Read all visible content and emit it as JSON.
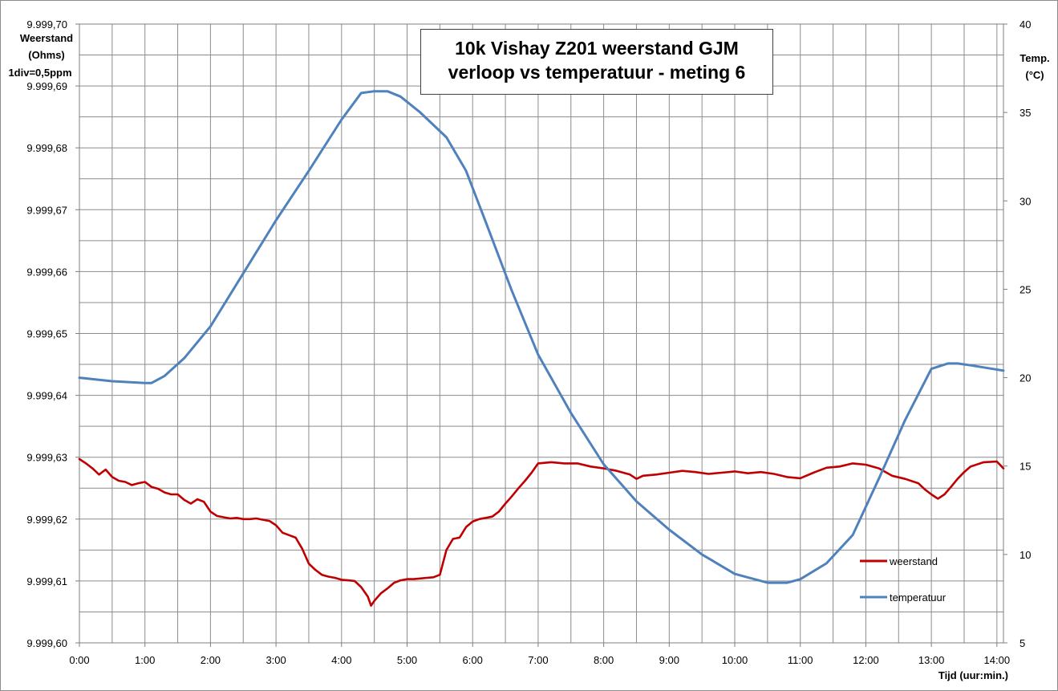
{
  "chart_data": {
    "type": "line",
    "title": [
      "10k Vishay  Z201 weerstand GJM",
      "verloop vs temperatuur  - meting 6"
    ],
    "y_left_label": [
      "Weerstand",
      "(Ohms)",
      "1div=0,5ppm"
    ],
    "y_right_label": [
      "Temp.",
      "(°C)"
    ],
    "xlabel": "Tijd (uur:min.)",
    "x_ticks": [
      "0:00",
      "1:00",
      "2:00",
      "3:00",
      "4:00",
      "5:00",
      "6:00",
      "7:00",
      "8:00",
      "9:00",
      "10:00",
      "11:00",
      "12:00",
      "13:00",
      "14:00"
    ],
    "xlim": [
      0,
      14.1
    ],
    "y_left_ticks": [
      9999.6,
      9999.61,
      9999.62,
      9999.63,
      9999.64,
      9999.65,
      9999.66,
      9999.67,
      9999.68,
      9999.69,
      9999.7
    ],
    "y_left_tick_labels": [
      "9.999,60",
      "9.999,61",
      "9.999,62",
      "9.999,63",
      "9.999,64",
      "9.999,65",
      "9.999,66",
      "9.999,67",
      "9.999,68",
      "9.999,69",
      "9.999,70"
    ],
    "ylim_left": [
      9999.6,
      9999.7
    ],
    "y_right_ticks": [
      5,
      10,
      15,
      20,
      25,
      30,
      35,
      40
    ],
    "ylim_right": [
      5,
      40
    ],
    "grid": true,
    "legend_position": "bottom-right",
    "colors": {
      "weerstand": "#c00000",
      "temperatuur": "#4f81bd"
    },
    "series": [
      {
        "name": "weerstand",
        "axis": "left",
        "x": [
          0,
          0.1,
          0.2,
          0.3,
          0.4,
          0.5,
          0.6,
          0.7,
          0.8,
          0.9,
          1.0,
          1.1,
          1.2,
          1.3,
          1.4,
          1.5,
          1.6,
          1.7,
          1.8,
          1.9,
          2.0,
          2.1,
          2.2,
          2.3,
          2.4,
          2.5,
          2.6,
          2.7,
          2.8,
          2.9,
          3.0,
          3.1,
          3.2,
          3.3,
          3.4,
          3.5,
          3.6,
          3.7,
          3.8,
          3.9,
          4.0,
          4.1,
          4.2,
          4.3,
          4.4,
          4.45,
          4.5,
          4.6,
          4.7,
          4.8,
          4.9,
          5.0,
          5.1,
          5.2,
          5.3,
          5.4,
          5.5,
          5.6,
          5.7,
          5.8,
          5.9,
          6.0,
          6.1,
          6.2,
          6.3,
          6.4,
          6.5,
          6.6,
          6.7,
          6.8,
          6.9,
          7.0,
          7.2,
          7.4,
          7.6,
          7.8,
          8.0,
          8.2,
          8.4,
          8.5,
          8.6,
          8.8,
          9.0,
          9.2,
          9.4,
          9.6,
          9.8,
          10.0,
          10.2,
          10.4,
          10.6,
          10.8,
          11.0,
          11.2,
          11.4,
          11.6,
          11.8,
          12.0,
          12.2,
          12.4,
          12.6,
          12.8,
          12.9,
          13.0,
          13.1,
          13.2,
          13.3,
          13.4,
          13.5,
          13.6,
          13.8,
          14.0,
          14.1
        ],
        "values": [
          9999.6297,
          9999.629,
          9999.6282,
          9999.6272,
          9999.628,
          9999.6268,
          9999.6262,
          9999.626,
          9999.6255,
          9999.6258,
          9999.626,
          9999.6252,
          9999.6249,
          9999.6243,
          9999.624,
          9999.624,
          9999.6231,
          9999.6225,
          9999.6232,
          9999.6228,
          9999.6212,
          9999.6205,
          9999.6203,
          9999.6201,
          9999.6202,
          9999.62,
          9999.62,
          9999.6201,
          9999.6199,
          9999.6197,
          9999.619,
          9999.6178,
          9999.6174,
          9999.617,
          9999.6152,
          9999.6128,
          9999.6118,
          9999.611,
          9999.6107,
          9999.6105,
          9999.6102,
          9999.6101,
          9999.61,
          9999.609,
          9999.6075,
          9999.606,
          9999.6068,
          9999.608,
          9999.6088,
          9999.6097,
          9999.6101,
          9999.6103,
          9999.6103,
          9999.6104,
          9999.6105,
          9999.6106,
          9999.611,
          9999.615,
          9999.6168,
          9999.617,
          9999.6187,
          9999.6196,
          9999.62,
          9999.6202,
          9999.6204,
          9999.6212,
          9999.6225,
          9999.6237,
          9999.625,
          9999.6262,
          9999.6275,
          9999.629,
          9999.6292,
          9999.629,
          9999.629,
          9999.6285,
          9999.6282,
          9999.6278,
          9999.6272,
          9999.6265,
          9999.627,
          9999.6272,
          9999.6275,
          9999.6278,
          9999.6276,
          9999.6273,
          9999.6275,
          9999.6277,
          9999.6274,
          9999.6276,
          9999.6273,
          9999.6268,
          9999.6266,
          9999.6275,
          9999.6283,
          9999.6285,
          9999.629,
          9999.6288,
          9999.6282,
          9999.627,
          9999.6265,
          9999.6258,
          9999.6248,
          9999.624,
          9999.6233,
          9999.624,
          9999.6252,
          9999.6265,
          9999.6276,
          9999.6285,
          9999.6292,
          9999.6293,
          9999.6282
        ],
        "line_width": 2.6
      },
      {
        "name": "temperatuur",
        "axis": "right",
        "x": [
          0,
          0.5,
          1.0,
          1.1,
          1.3,
          1.6,
          2.0,
          2.5,
          3.0,
          3.5,
          4.0,
          4.3,
          4.5,
          4.7,
          4.9,
          5.2,
          5.6,
          5.9,
          6.2,
          6.6,
          7.0,
          7.5,
          8.0,
          8.5,
          9.0,
          9.5,
          10.0,
          10.5,
          10.8,
          11.0,
          11.4,
          11.8,
          12.2,
          12.6,
          13.0,
          13.25,
          13.4,
          13.6,
          14.1
        ],
        "values": [
          20.0,
          19.8,
          19.7,
          19.7,
          20.1,
          21.1,
          22.9,
          25.9,
          28.9,
          31.7,
          34.6,
          36.1,
          36.2,
          36.2,
          35.9,
          35.0,
          33.6,
          31.7,
          28.8,
          24.9,
          21.3,
          18.0,
          15.1,
          13.0,
          11.4,
          10.0,
          8.9,
          8.4,
          8.4,
          8.6,
          9.5,
          11.1,
          14.3,
          17.6,
          20.5,
          20.8,
          20.8,
          20.7,
          20.4
        ],
        "line_width": 3
      }
    ],
    "legend": [
      "weerstand",
      "temperatuur"
    ]
  }
}
